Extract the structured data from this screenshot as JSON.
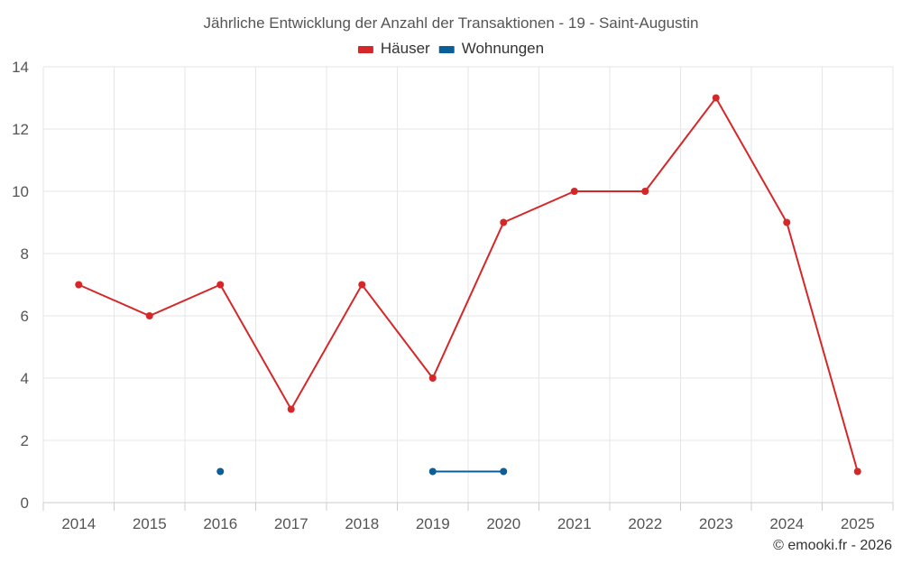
{
  "chart_data": {
    "type": "line",
    "title": "Jährliche Entwicklung der Anzahl der Transaktionen - 19 - Saint-Augustin",
    "categories": [
      "2014",
      "2015",
      "2016",
      "2017",
      "2018",
      "2019",
      "2020",
      "2021",
      "2022",
      "2023",
      "2024",
      "2025"
    ],
    "series": [
      {
        "name": "Häuser",
        "color": "#d62728",
        "values": [
          7,
          6,
          7,
          3,
          7,
          4,
          9,
          10,
          10,
          13,
          9,
          1
        ]
      },
      {
        "name": "Wohnungen",
        "color": "#0a5f98",
        "values": [
          null,
          null,
          1,
          null,
          null,
          1,
          1,
          null,
          null,
          null,
          null,
          null
        ]
      }
    ],
    "ylim": [
      0,
      14
    ],
    "yticks": [
      0,
      2,
      4,
      6,
      8,
      10,
      12,
      14
    ],
    "grid": true,
    "legend": "top-center"
  },
  "credit": "© emooki.fr - 2026"
}
